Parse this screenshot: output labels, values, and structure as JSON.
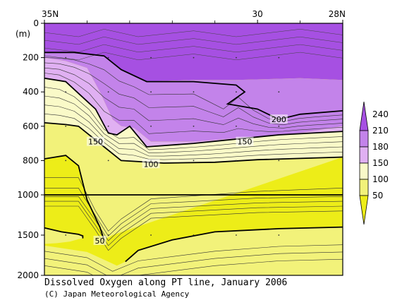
{
  "chart_data": {
    "type": "heatmap",
    "title": "Dissolved Oxygen along PT line, January 2006",
    "credit": "(C) Japan Meteorological Agency",
    "x_ticks": [
      {
        "value": 35,
        "label": "35N"
      },
      {
        "value": 30,
        "label": "30"
      },
      {
        "value": 28,
        "label": "28N"
      }
    ],
    "xlim": [
      35,
      28
    ],
    "ylabel": "(m)",
    "y_ticks_upper": [
      0,
      200,
      400,
      600,
      800,
      1000
    ],
    "y_ticks_lower": [
      1500,
      2000
    ],
    "ylim": [
      0,
      2000
    ],
    "scale_break_depth": 1000,
    "colorbar": {
      "levels": [
        "240",
        "210",
        "180",
        "150",
        "100",
        "50"
      ],
      "colors": {
        "gt210": "#a650e2",
        "180_210": "#c383ea",
        "150_180": "#e0b0f2",
        "100_150": "#fafac8",
        "50_100": "#f2f27a",
        "lt50": "#eded18"
      }
    },
    "contour_labels": [
      "200",
      "150",
      "150",
      "100",
      "50"
    ],
    "bands": [
      {
        "range": "gt210",
        "top": [
          [
            35,
            0
          ],
          [
            28,
            0
          ]
        ],
        "bottom": [
          [
            35,
            170
          ],
          [
            34.3,
            170
          ],
          [
            33.6,
            190
          ],
          [
            33.2,
            270
          ],
          [
            32.6,
            340
          ],
          [
            31.5,
            330
          ],
          [
            30.5,
            330
          ],
          [
            29,
            320
          ],
          [
            28,
            330
          ]
        ]
      },
      {
        "range": "180_210",
        "top": [
          [
            35,
            170
          ],
          [
            34.3,
            170
          ],
          [
            33.6,
            190
          ],
          [
            33.2,
            270
          ],
          [
            32.6,
            340
          ],
          [
            31.5,
            330
          ],
          [
            30.5,
            330
          ],
          [
            29,
            320
          ],
          [
            28,
            330
          ]
        ],
        "bottom": [
          [
            35,
            200
          ],
          [
            34.5,
            220
          ],
          [
            34,
            260
          ],
          [
            33.7,
            400
          ],
          [
            33.4,
            560
          ],
          [
            33.2,
            600
          ],
          [
            32.9,
            610
          ],
          [
            32.5,
            690
          ],
          [
            31.5,
            690
          ],
          [
            30.5,
            670
          ],
          [
            29,
            640
          ],
          [
            28,
            600
          ]
        ]
      },
      {
        "range": "150_180",
        "top": [
          [
            35,
            200
          ],
          [
            34.5,
            220
          ],
          [
            34,
            260
          ],
          [
            33.7,
            400
          ],
          [
            33.4,
            560
          ],
          [
            33.2,
            600
          ],
          [
            32.9,
            610
          ],
          [
            32.5,
            690
          ],
          [
            31.5,
            690
          ],
          [
            30.5,
            670
          ],
          [
            29,
            640
          ],
          [
            28,
            600
          ]
        ],
        "bottom": [
          [
            35,
            320
          ],
          [
            34.5,
            340
          ],
          [
            33.8,
            500
          ],
          [
            33.5,
            640
          ],
          [
            33.3,
            650
          ],
          [
            33,
            600
          ],
          [
            32.6,
            720
          ],
          [
            31.5,
            700
          ],
          [
            30.3,
            670
          ],
          [
            29.5,
            650
          ],
          [
            28,
            630
          ]
        ]
      },
      {
        "range": "100_150",
        "top": [
          [
            35,
            320
          ],
          [
            34.5,
            340
          ],
          [
            33.8,
            500
          ],
          [
            33.5,
            640
          ],
          [
            33.3,
            650
          ],
          [
            33,
            600
          ],
          [
            32.6,
            720
          ],
          [
            31.5,
            700
          ],
          [
            30.3,
            670
          ],
          [
            29.5,
            650
          ],
          [
            28,
            630
          ]
        ],
        "bottom": [
          [
            35,
            580
          ],
          [
            34.5,
            590
          ],
          [
            34.2,
            600
          ],
          [
            33.6,
            720
          ],
          [
            33.2,
            800
          ],
          [
            32.2,
            815
          ],
          [
            31,
            810
          ],
          [
            30,
            795
          ],
          [
            28,
            780
          ]
        ]
      },
      {
        "range": "50_100",
        "top": [
          [
            35,
            580
          ],
          [
            34.5,
            590
          ],
          [
            34.2,
            600
          ],
          [
            33.6,
            720
          ],
          [
            33.2,
            800
          ],
          [
            32.2,
            815
          ],
          [
            31,
            810
          ],
          [
            30,
            795
          ],
          [
            28,
            780
          ]
        ],
        "bottom": [
          [
            35,
            790
          ],
          [
            34.5,
            770
          ],
          [
            34.2,
            830
          ],
          [
            34,
            1060
          ],
          [
            33.7,
            1400
          ],
          [
            33.6,
            1560
          ],
          [
            33.4,
            1500
          ]
        ]
      },
      {
        "range": "50_100",
        "top": [
          [
            35,
            1410
          ],
          [
            34.6,
            1460
          ],
          [
            34.2,
            1490
          ],
          [
            34.1,
            1510
          ],
          [
            34.1,
            1540
          ],
          [
            34.2,
            1550
          ],
          [
            34.4,
            1580
          ],
          [
            34.7,
            1600
          ],
          [
            35,
            1610
          ]
        ],
        "bottom": [
          [
            35,
            2000
          ],
          [
            35,
            2000
          ]
        ]
      },
      {
        "range": "50_100",
        "top": [
          [
            28,
            1400
          ],
          [
            29.5,
            1420
          ],
          [
            31,
            1460
          ],
          [
            32,
            1560
          ],
          [
            32.8,
            1690
          ],
          [
            33.1,
            1830
          ],
          [
            33.3,
            1880
          ],
          [
            33.5,
            1830
          ],
          [
            34,
            1710
          ],
          [
            35,
            1630
          ]
        ],
        "bottom": [
          [
            28,
            2000
          ],
          [
            35,
            2000
          ]
        ]
      }
    ],
    "contours": [
      {
        "level": 200,
        "points": [
          [
            35,
            170
          ],
          [
            34.3,
            170
          ],
          [
            33.6,
            190
          ],
          [
            33.2,
            270
          ],
          [
            32.6,
            340
          ],
          [
            31.5,
            340
          ],
          [
            30.5,
            360
          ],
          [
            30.3,
            400
          ],
          [
            30.7,
            470
          ],
          [
            30,
            500
          ],
          [
            29.5,
            560
          ],
          [
            29,
            530
          ],
          [
            28,
            510
          ]
        ]
      },
      {
        "level": 150,
        "points": [
          [
            35,
            320
          ],
          [
            34.5,
            340
          ],
          [
            33.8,
            500
          ],
          [
            33.5,
            640
          ],
          [
            33.3,
            650
          ],
          [
            33,
            600
          ],
          [
            32.6,
            720
          ],
          [
            31.5,
            700
          ],
          [
            30.3,
            670
          ],
          [
            29.5,
            650
          ],
          [
            28,
            630
          ]
        ]
      },
      {
        "level": 100,
        "points": [
          [
            35,
            580
          ],
          [
            34.5,
            590
          ],
          [
            34.2,
            600
          ],
          [
            33.6,
            720
          ],
          [
            33.2,
            800
          ],
          [
            32.2,
            815
          ],
          [
            31,
            810
          ],
          [
            30,
            795
          ],
          [
            28,
            780
          ]
        ]
      },
      {
        "level": 50,
        "points": [
          [
            35,
            790
          ],
          [
            34.5,
            770
          ],
          [
            34.2,
            830
          ],
          [
            34,
            1060
          ],
          [
            33.7,
            1400
          ],
          [
            33.6,
            1560
          ]
        ]
      },
      {
        "level": 50,
        "points": [
          [
            35,
            1410
          ],
          [
            34.6,
            1460
          ],
          [
            34.2,
            1490
          ],
          [
            34.1,
            1510
          ],
          [
            34.1,
            1540
          ]
        ]
      },
      {
        "level": 50,
        "points": [
          [
            28,
            1400
          ],
          [
            29.5,
            1420
          ],
          [
            31,
            1460
          ],
          [
            32,
            1560
          ],
          [
            32.8,
            1690
          ],
          [
            33.1,
            1830
          ]
        ]
      }
    ],
    "label_positions": [
      {
        "text": "200",
        "x": 29.5,
        "y": 560
      },
      {
        "text": "150",
        "x": 33.8,
        "y": 690
      },
      {
        "text": "150",
        "x": 30.3,
        "y": 690
      },
      {
        "text": "100",
        "x": 32.5,
        "y": 820
      },
      {
        "text": "50",
        "x": 33.7,
        "y": 1570
      }
    ]
  }
}
